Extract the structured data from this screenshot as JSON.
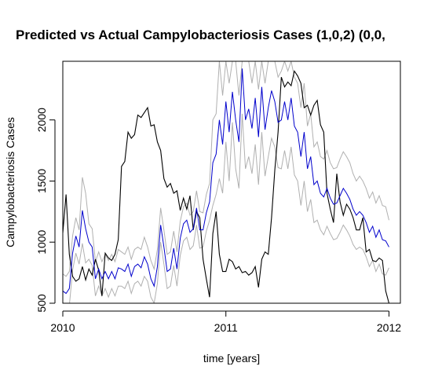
{
  "chart_data": {
    "type": "line",
    "title": "Predicted vs Actual Campylobacteriosis Cases (1,0,2) (0,0,",
    "xlabel": "time [years]",
    "ylabel": "Campylobacteriosis Cases",
    "xlim": [
      2010,
      2012.07
    ],
    "ylim": [
      500,
      2480
    ],
    "x_ticks": [
      2010,
      2011,
      2012
    ],
    "x_tick_labels": [
      "2010",
      "2011",
      "2012"
    ],
    "y_ticks": [
      500,
      1000,
      1500,
      2000
    ],
    "y_tick_labels": [
      "500",
      "1000",
      "1500",
      "2000"
    ],
    "grid": false,
    "colors": {
      "actual": "#000000",
      "predicted": "#0000cc",
      "bounds": "#b0b0b0"
    },
    "series": [
      {
        "role": "actual",
        "x": [
          2010,
          2010.02,
          2010.04,
          2010.06,
          2010.08,
          2010.1,
          2010.12,
          2010.14,
          2010.16,
          2010.18,
          2010.2,
          2010.22,
          2010.24,
          2010.26,
          2010.28,
          2010.3,
          2010.32,
          2010.34,
          2010.36,
          2010.38,
          2010.4,
          2010.42,
          2010.44,
          2010.46,
          2010.48,
          2010.5,
          2010.52,
          2010.54,
          2010.56,
          2010.58,
          2010.6,
          2010.62,
          2010.64,
          2010.66,
          2010.68,
          2010.7,
          2010.72,
          2010.74,
          2010.76,
          2010.78,
          2010.8,
          2010.82,
          2010.84,
          2010.86,
          2010.88,
          2010.9,
          2010.92,
          2010.94,
          2010.96,
          2010.98,
          2011,
          2011.02,
          2011.04,
          2011.06,
          2011.08,
          2011.1,
          2011.12,
          2011.14,
          2011.16,
          2011.18,
          2011.2,
          2011.22,
          2011.24,
          2011.26,
          2011.28,
          2011.3,
          2011.32,
          2011.34,
          2011.36,
          2011.38,
          2011.4,
          2011.42,
          2011.44,
          2011.46,
          2011.48,
          2011.5,
          2011.52,
          2011.54,
          2011.56,
          2011.58,
          2011.6,
          2011.62,
          2011.64,
          2011.66,
          2011.68,
          2011.7,
          2011.72,
          2011.74,
          2011.76,
          2011.78,
          2011.8,
          2011.82,
          2011.84,
          2011.86,
          2011.88,
          2011.9,
          2011.92,
          2011.94,
          2011.96,
          2011.98,
          2012
        ],
        "values": [
          1075,
          1390,
          900,
          720,
          680,
          700,
          800,
          690,
          780,
          730,
          860,
          770,
          560,
          910,
          870,
          850,
          900,
          1020,
          1620,
          1660,
          1900,
          1850,
          1880,
          2040,
          2020,
          2060,
          2100,
          1950,
          1960,
          1820,
          1750,
          1520,
          1450,
          1480,
          1400,
          1420,
          1260,
          1360,
          1270,
          1380,
          1100,
          1250,
          1200,
          860,
          700,
          550,
          1070,
          1250,
          900,
          760,
          760,
          860,
          840,
          780,
          800,
          750,
          760,
          730,
          750,
          800,
          630,
          860,
          920,
          900,
          1200,
          1590,
          1900,
          2350,
          2270,
          2310,
          2280,
          2400,
          2360,
          2300,
          2100,
          2120,
          2040,
          2120,
          2160,
          1960,
          1900,
          1400,
          1270,
          1160,
          1560,
          1330,
          1220,
          1310,
          1270,
          1200,
          1100,
          1100,
          1200,
          920,
          940,
          850,
          840,
          870,
          850,
          600,
          500
        ]
      },
      {
        "role": "predicted",
        "x": [
          2010,
          2010.02,
          2010.04,
          2010.06,
          2010.08,
          2010.1,
          2010.12,
          2010.14,
          2010.16,
          2010.18,
          2010.2,
          2010.22,
          2010.24,
          2010.26,
          2010.28,
          2010.3,
          2010.32,
          2010.34,
          2010.36,
          2010.38,
          2010.4,
          2010.42,
          2010.44,
          2010.46,
          2010.48,
          2010.5,
          2010.52,
          2010.54,
          2010.56,
          2010.58,
          2010.6,
          2010.62,
          2010.64,
          2010.66,
          2010.68,
          2010.7,
          2010.72,
          2010.74,
          2010.76,
          2010.78,
          2010.8,
          2010.82,
          2010.84,
          2010.86,
          2010.88,
          2010.9,
          2010.92,
          2010.94,
          2010.96,
          2010.98,
          2011,
          2011.02,
          2011.04,
          2011.06,
          2011.08,
          2011.1,
          2011.12,
          2011.14,
          2011.16,
          2011.18,
          2011.2,
          2011.22,
          2011.24,
          2011.26,
          2011.28,
          2011.3,
          2011.32,
          2011.34,
          2011.36,
          2011.38,
          2011.4,
          2011.42,
          2011.44,
          2011.46,
          2011.48,
          2011.5,
          2011.52,
          2011.54,
          2011.56,
          2011.58,
          2011.6,
          2011.62,
          2011.64,
          2011.66,
          2011.68,
          2011.7,
          2011.72,
          2011.74,
          2011.76,
          2011.78,
          2011.8,
          2011.82,
          2011.84,
          2011.86,
          2011.88,
          2011.9,
          2011.92,
          2011.94,
          2011.96,
          2011.98,
          2012
        ],
        "values": [
          600,
          580,
          620,
          910,
          1050,
          960,
          1260,
          1110,
          1000,
          960,
          700,
          780,
          700,
          760,
          700,
          760,
          700,
          790,
          780,
          760,
          820,
          720,
          800,
          820,
          790,
          880,
          820,
          700,
          640,
          800,
          1140,
          960,
          760,
          780,
          950,
          780,
          1030,
          1150,
          1180,
          1080,
          1110,
          1280,
          1100,
          1100,
          1240,
          1330,
          1650,
          1720,
          2000,
          1800,
          2150,
          1900,
          2230,
          2000,
          1820,
          2420,
          2000,
          2090,
          1930,
          2180,
          1860,
          2270,
          1920,
          2100,
          2240,
          2150,
          1980,
          2000,
          2150,
          2000,
          2180,
          1950,
          1900,
          1700,
          1900,
          1600,
          1700,
          1470,
          1500,
          1400,
          1370,
          1440,
          1360,
          1310,
          1320,
          1380,
          1440,
          1400,
          1350,
          1270,
          1220,
          1250,
          1220,
          1160,
          1080,
          1130,
          1040,
          1100,
          1020,
          1010,
          960
        ]
      },
      {
        "role": "upper-bound",
        "x": [
          2010,
          2010.02,
          2010.04,
          2010.06,
          2010.08,
          2010.1,
          2010.12,
          2010.14,
          2010.16,
          2010.18,
          2010.2,
          2010.22,
          2010.24,
          2010.26,
          2010.28,
          2010.3,
          2010.32,
          2010.34,
          2010.36,
          2010.38,
          2010.4,
          2010.42,
          2010.44,
          2010.46,
          2010.48,
          2010.5,
          2010.52,
          2010.54,
          2010.56,
          2010.58,
          2010.6,
          2010.62,
          2010.64,
          2010.66,
          2010.68,
          2010.7,
          2010.72,
          2010.74,
          2010.76,
          2010.78,
          2010.8,
          2010.82,
          2010.84,
          2010.86,
          2010.88,
          2010.9,
          2010.92,
          2010.94,
          2010.96,
          2010.98,
          2011,
          2011.02,
          2011.04,
          2011.06,
          2011.08,
          2011.1,
          2011.12,
          2011.14,
          2011.16,
          2011.18,
          2011.2,
          2011.22,
          2011.24,
          2011.26,
          2011.28,
          2011.3,
          2011.32,
          2011.34,
          2011.36,
          2011.38,
          2011.4,
          2011.42,
          2011.44,
          2011.46,
          2011.48,
          2011.5,
          2011.52,
          2011.54,
          2011.56,
          2011.58,
          2011.6,
          2011.62,
          2011.64,
          2011.66,
          2011.68,
          2011.7,
          2011.72,
          2011.74,
          2011.76,
          2011.78,
          2011.8,
          2011.82,
          2011.84,
          2011.86,
          2011.88,
          2011.9,
          2011.92,
          2011.94,
          2011.96,
          2011.98,
          2012
        ],
        "values": [
          740,
          720,
          760,
          1050,
          1200,
          1100,
          1530,
          1400,
          1150,
          1110,
          840,
          920,
          840,
          900,
          850,
          900,
          840,
          940,
          920,
          900,
          960,
          860,
          940,
          960,
          940,
          1040,
          960,
          850,
          780,
          940,
          1280,
          1100,
          900,
          920,
          1090,
          920,
          1170,
          1290,
          1320,
          1220,
          1250,
          1420,
          1250,
          1240,
          1390,
          1480,
          2000,
          2050,
          2480,
          2200,
          2480,
          2300,
          2480,
          2480,
          2200,
          2480,
          2480,
          2480,
          2300,
          2480,
          2250,
          2480,
          2300,
          2480,
          2480,
          2480,
          2350,
          2400,
          2480,
          2400,
          2480,
          2350,
          2300,
          2100,
          2300,
          1950,
          2050,
          1780,
          1820,
          1700,
          1680,
          1750,
          1650,
          1600,
          1610,
          1680,
          1740,
          1700,
          1650,
          1560,
          1500,
          1540,
          1500,
          1440,
          1360,
          1410,
          1320,
          1380,
          1300,
          1290,
          1180
        ]
      },
      {
        "role": "lower-bound",
        "x": [
          2010,
          2010.02,
          2010.04,
          2010.06,
          2010.08,
          2010.1,
          2010.12,
          2010.14,
          2010.16,
          2010.18,
          2010.2,
          2010.22,
          2010.24,
          2010.26,
          2010.28,
          2010.3,
          2010.32,
          2010.34,
          2010.36,
          2010.38,
          2010.4,
          2010.42,
          2010.44,
          2010.46,
          2010.48,
          2010.5,
          2010.52,
          2010.54,
          2010.56,
          2010.58,
          2010.6,
          2010.62,
          2010.64,
          2010.66,
          2010.68,
          2010.7,
          2010.72,
          2010.74,
          2010.76,
          2010.78,
          2010.8,
          2010.82,
          2010.84,
          2010.86,
          2010.88,
          2010.9,
          2010.92,
          2010.94,
          2010.96,
          2010.98,
          2011,
          2011.02,
          2011.04,
          2011.06,
          2011.08,
          2011.1,
          2011.12,
          2011.14,
          2011.16,
          2011.18,
          2011.2,
          2011.22,
          2011.24,
          2011.26,
          2011.28,
          2011.3,
          2011.32,
          2011.34,
          2011.36,
          2011.38,
          2011.4,
          2011.42,
          2011.44,
          2011.46,
          2011.48,
          2011.5,
          2011.52,
          2011.54,
          2011.56,
          2011.58,
          2011.6,
          2011.62,
          2011.64,
          2011.66,
          2011.68,
          2011.7,
          2011.72,
          2011.74,
          2011.76,
          2011.78,
          2011.8,
          2011.82,
          2011.84,
          2011.86,
          2011.88,
          2011.9,
          2011.92,
          2011.94,
          2011.96,
          2011.98,
          2012
        ],
        "values": [
          460,
          440,
          480,
          770,
          910,
          820,
          990,
          830,
          860,
          810,
          560,
          640,
          560,
          620,
          550,
          620,
          560,
          640,
          640,
          620,
          680,
          580,
          660,
          680,
          640,
          720,
          680,
          550,
          500,
          660,
          1000,
          820,
          620,
          640,
          810,
          640,
          890,
          1010,
          1040,
          940,
          970,
          1140,
          950,
          960,
          1090,
          1180,
          1300,
          1390,
          1520,
          1400,
          1820,
          1500,
          1980,
          1600,
          1440,
          2050,
          1600,
          1700,
          1560,
          1800,
          1470,
          1900,
          1540,
          1700,
          1850,
          1780,
          1610,
          1600,
          1750,
          1600,
          1780,
          1550,
          1500,
          1300,
          1500,
          1250,
          1350,
          1160,
          1180,
          1100,
          1060,
          1130,
          1070,
          1020,
          1030,
          1080,
          1140,
          1100,
          1050,
          980,
          940,
          960,
          940,
          880,
          800,
          850,
          760,
          820,
          740,
          730,
          790
        ]
      }
    ]
  }
}
